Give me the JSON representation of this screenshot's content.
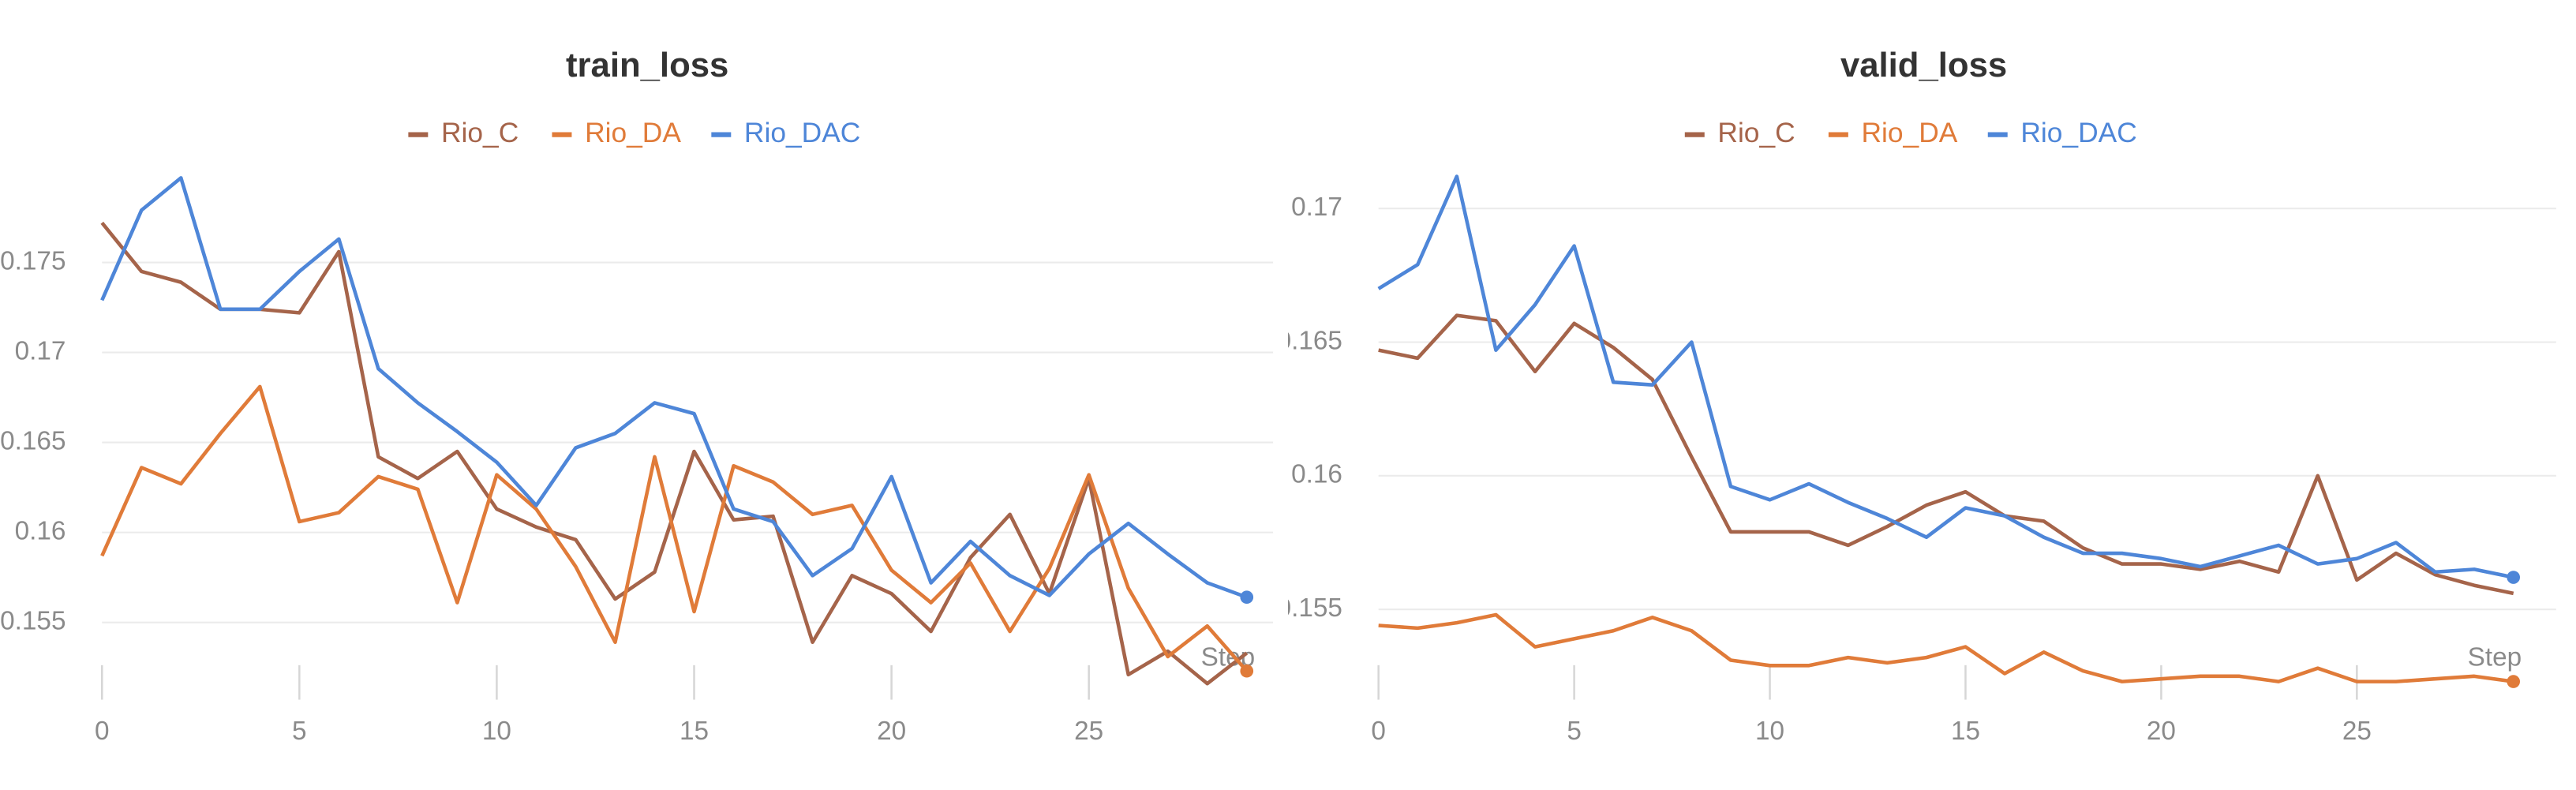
{
  "chart_data": [
    {
      "type": "line",
      "title": "train_loss",
      "xlabel": "Step",
      "x": [
        0,
        1,
        2,
        3,
        4,
        5,
        6,
        7,
        8,
        9,
        10,
        11,
        12,
        13,
        14,
        15,
        16,
        17,
        18,
        19,
        20,
        21,
        22,
        23,
        24,
        25,
        26,
        27,
        28,
        29
      ],
      "xlim": [
        0,
        29
      ],
      "xticks": [
        0,
        5,
        10,
        15,
        20,
        25
      ],
      "ylim": [
        0.151,
        0.18
      ],
      "yticks": [
        0.155,
        0.16,
        0.165,
        0.17,
        0.175
      ],
      "grid": true,
      "series": [
        {
          "name": "Rio_C",
          "color": "#a5644a",
          "values": [
            0.1772,
            0.1745,
            0.1739,
            0.1724,
            0.1724,
            0.1722,
            0.1756,
            0.1642,
            0.163,
            0.1645,
            0.1613,
            0.1603,
            0.1596,
            0.1563,
            0.1578,
            0.1645,
            0.1607,
            0.1609,
            0.1539,
            0.1576,
            0.1566,
            0.1545,
            0.1586,
            0.161,
            0.1566,
            0.163,
            0.1521,
            0.1534,
            0.1516,
            0.1533
          ]
        },
        {
          "name": "Rio_DA",
          "color": "#e07b39",
          "values": [
            0.1587,
            0.1636,
            0.1627,
            0.1655,
            0.1681,
            0.1606,
            0.1611,
            0.1631,
            0.1624,
            0.1561,
            0.1632,
            0.1613,
            0.1581,
            0.1539,
            0.1642,
            0.1556,
            0.1637,
            0.1628,
            0.161,
            0.1615,
            0.1579,
            0.1561,
            0.1583,
            0.1545,
            0.158,
            0.1632,
            0.1569,
            0.1531,
            0.1548,
            0.1523
          ]
        },
        {
          "name": "Rio_DAC",
          "color": "#4e86d8",
          "values": [
            0.1729,
            0.1779,
            0.1797,
            0.1724,
            0.1724,
            0.1745,
            0.1763,
            0.1691,
            0.1672,
            0.1656,
            0.1639,
            0.1615,
            0.1647,
            0.1655,
            0.1672,
            0.1666,
            0.1613,
            0.1606,
            0.1576,
            0.1591,
            0.1631,
            0.1572,
            0.1595,
            0.1576,
            0.1565,
            0.1588,
            0.1605,
            0.1588,
            0.1572,
            0.1564
          ]
        }
      ]
    },
    {
      "type": "line",
      "title": "valid_loss",
      "xlabel": "Step",
      "x": [
        0,
        1,
        2,
        3,
        4,
        5,
        6,
        7,
        8,
        9,
        10,
        11,
        12,
        13,
        14,
        15,
        16,
        17,
        18,
        19,
        20,
        21,
        22,
        23,
        24,
        25,
        26,
        27,
        28,
        29
      ],
      "xlim": [
        0,
        29
      ],
      "xticks": [
        0,
        5,
        10,
        15,
        20,
        25
      ],
      "ylim": [
        0.1515,
        0.172
      ],
      "yticks": [
        0.155,
        0.16,
        0.165,
        0.17
      ],
      "grid": true,
      "series": [
        {
          "name": "Rio_C",
          "color": "#a5644a",
          "values": [
            0.1647,
            0.1644,
            0.166,
            0.1658,
            0.1639,
            0.1657,
            0.1648,
            0.1636,
            0.1607,
            0.1579,
            0.1579,
            0.1579,
            0.1574,
            0.1581,
            0.1589,
            0.1594,
            0.1585,
            0.1583,
            0.1573,
            0.1567,
            0.1567,
            0.1565,
            0.1568,
            0.1564,
            0.16,
            0.1561,
            0.1571,
            0.1563,
            0.1559,
            0.1556
          ]
        },
        {
          "name": "Rio_DA",
          "color": "#e07b39",
          "values": [
            0.1544,
            0.1543,
            0.1545,
            0.1548,
            0.1536,
            0.1539,
            0.1542,
            0.1547,
            0.1542,
            0.1531,
            0.1529,
            0.1529,
            0.1532,
            0.153,
            0.1532,
            0.1536,
            0.1526,
            0.1534,
            0.1527,
            0.1523,
            0.1524,
            0.1525,
            0.1525,
            0.1523,
            0.1528,
            0.1523,
            0.1523,
            0.1524,
            0.1525,
            0.1523
          ]
        },
        {
          "name": "Rio_DAC",
          "color": "#4e86d8",
          "values": [
            0.167,
            0.1679,
            0.1712,
            0.1647,
            0.1664,
            0.1686,
            0.1635,
            0.1634,
            0.165,
            0.1596,
            0.1591,
            0.1597,
            0.159,
            0.1584,
            0.1577,
            0.1588,
            0.1585,
            0.1577,
            0.1571,
            0.1571,
            0.1569,
            0.1566,
            0.157,
            0.1574,
            0.1567,
            0.1569,
            0.1575,
            0.1564,
            0.1565,
            0.1562
          ]
        }
      ]
    }
  ]
}
